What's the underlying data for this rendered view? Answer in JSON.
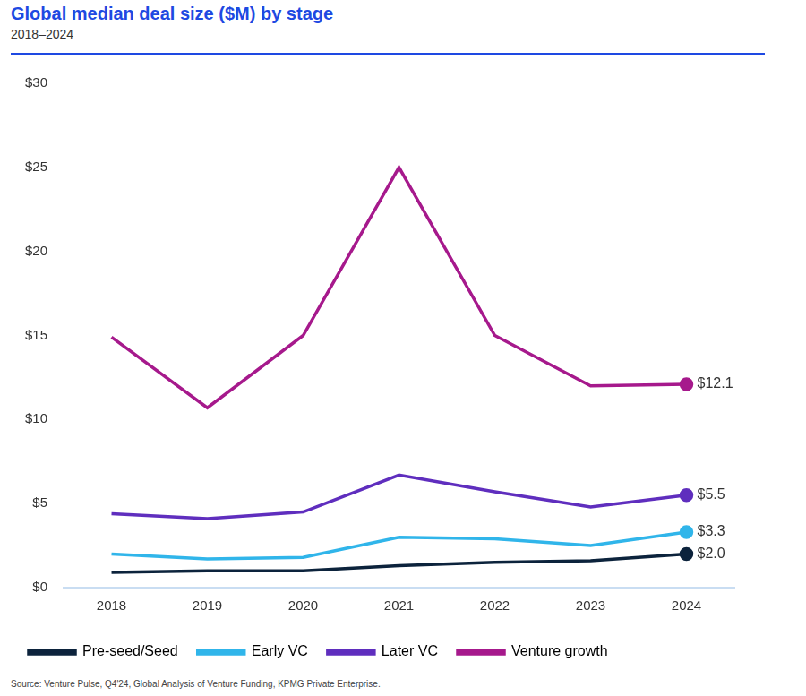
{
  "chart_data": {
    "type": "line",
    "title": "Global median deal size ($M) by stage",
    "subtitle": "2018–2024",
    "source": "Source: Venture Pulse, Q4'24, Global Analysis of Venture Funding, KPMG Private Enterprise.",
    "categories": [
      "2018",
      "2019",
      "2020",
      "2021",
      "2022",
      "2023",
      "2024"
    ],
    "series": [
      {
        "name": "Pre-seed/Seed",
        "color": "#0c233c",
        "values": [
          0.9,
          1.0,
          1.0,
          1.3,
          1.5,
          1.6,
          2.0
        ],
        "value_labels": [
          null,
          null,
          null,
          null,
          null,
          null,
          "$2.0"
        ]
      },
      {
        "name": "Early VC",
        "color": "#30b5ea",
        "values": [
          2.0,
          1.7,
          1.8,
          3.0,
          2.9,
          2.5,
          3.3
        ],
        "value_labels": [
          null,
          null,
          null,
          null,
          null,
          null,
          "$3.3"
        ]
      },
      {
        "name": "Later VC",
        "color": "#5f2ebe",
        "values": [
          4.4,
          4.1,
          4.5,
          6.7,
          5.7,
          4.8,
          5.5
        ],
        "value_labels": [
          null,
          null,
          null,
          null,
          null,
          null,
          "$5.5"
        ]
      },
      {
        "name": "Venture growth",
        "color": "#a6198c",
        "values": [
          14.9,
          10.7,
          15.0,
          25.0,
          15.0,
          12.0,
          12.1
        ],
        "value_labels": [
          null,
          null,
          null,
          null,
          null,
          null,
          "$12.1"
        ]
      }
    ],
    "ylim": [
      0,
      30
    ],
    "yticks": [
      {
        "value": 0,
        "label": "$0"
      },
      {
        "value": 5,
        "label": "$5"
      },
      {
        "value": 10,
        "label": "$10"
      },
      {
        "value": 15,
        "label": "$15"
      },
      {
        "value": 20,
        "label": "$20"
      },
      {
        "value": 25,
        "label": "$25"
      },
      {
        "value": 30,
        "label": "$30"
      }
    ],
    "grid": false,
    "legend": "bottom",
    "data_labels": true
  }
}
